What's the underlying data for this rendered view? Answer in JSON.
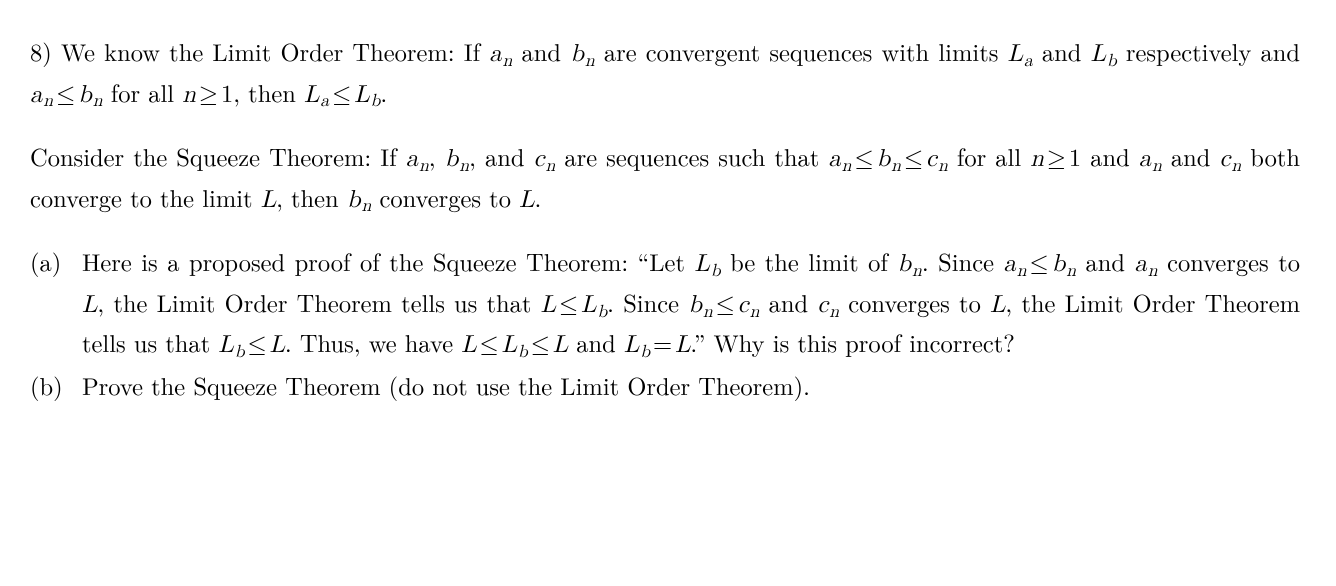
{
  "problem_number": "8)",
  "limit_order_theorem": {
    "prefix": "We know the Limit Order Theorem: If ",
    "seq_a": "a",
    "sub_n": "n",
    "and1": " and ",
    "seq_b": "b",
    "mid1": " are convergent sequences with limits ",
    "L": "L",
    "sub_a": "a",
    "and2": " and ",
    "sub_b": "b",
    "mid2": " respectively and ",
    "le": "≤",
    "forall": " for all ",
    "nvar": "n",
    "ge": "≥",
    "one": "1",
    "then": ", then ",
    "period": "."
  },
  "squeeze_theorem": {
    "prefix": "Consider the Squeeze Theorem: If ",
    "comma": ", ",
    "and": ", and ",
    "mid1": " are sequences such that ",
    "forall": " for all ",
    "mid2": " and ",
    "mid3": " both converge to the limit ",
    "then": ", then ",
    "tail": " converges to ",
    "period": "."
  },
  "part_a": {
    "marker": "(a)",
    "t1": "Here is a proposed proof of the Squeeze Theorem:  “Let ",
    "t2": " be the limit of ",
    "t3": ".  Since ",
    "t4": " and ",
    "t5": " converges to ",
    "t6": ", the Limit Order Theorem tells us that ",
    "t7": ".  Since ",
    "t8": ". Thus, we have ",
    "t9": " and ",
    "t10": ".” Why is this proof incorrect?",
    "eq": "="
  },
  "part_b": {
    "marker": "(b)",
    "text": "Prove the Squeeze Theorem (do not use the Limit Order Theorem)."
  },
  "sym": {
    "a": "a",
    "b": "b",
    "c": "c",
    "n": "n",
    "L": "L",
    "le": "≤",
    "ge": "≥",
    "one": "1"
  }
}
